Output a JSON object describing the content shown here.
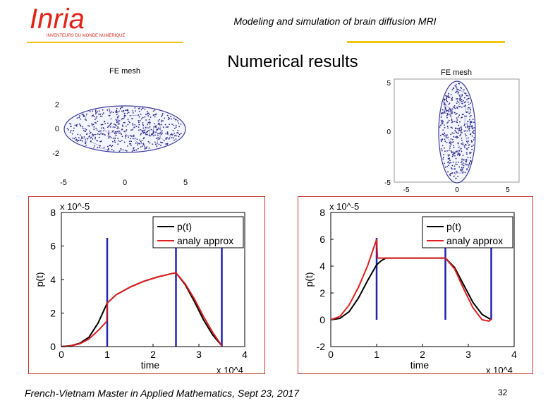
{
  "header": {
    "title": "Modeling and simulation of brain diffusion MRI",
    "logo_text": "Inria",
    "logo_tagline": "INVENTEURS DU MONDE NUMERIQUE"
  },
  "slide": {
    "title": "Numerical results"
  },
  "footer": {
    "text": "French-Vietnam Master in Applied Mathematics, Sept 23, 2017",
    "page": "32"
  },
  "colors": {
    "accent_yellow": "#f0c419",
    "inria_red": "#e2231a",
    "frame_red": "#c0392b",
    "mesh_blue": "#3b3b9c",
    "curve_black": "#000000",
    "curve_red": "#e02020",
    "line_blue": "#2323b0"
  },
  "mesh_left": {
    "title": "FE mesh",
    "xticks": [
      "-5",
      "0",
      "5"
    ],
    "yticks": [
      "2",
      "0",
      "-2"
    ]
  },
  "mesh_right": {
    "title": "FE mesh",
    "xticks": [
      "-5",
      "0",
      "5"
    ],
    "yticks": [
      "5",
      "0",
      "-5"
    ]
  },
  "chart_data": [
    {
      "type": "line",
      "xlabel": "time",
      "ylabel": "p(t)",
      "x_multiplier": "x 10^4",
      "y_multiplier": "x 10^-5",
      "xlim": [
        0,
        4
      ],
      "ylim": [
        0,
        8
      ],
      "xticks": [
        "0",
        "1",
        "2",
        "3",
        "4"
      ],
      "yticks": [
        "0",
        "2",
        "4",
        "6",
        "8"
      ],
      "legend": [
        "p(t)",
        "analy approx"
      ],
      "vertical_lines": [
        1.0,
        2.5,
        3.5
      ],
      "series": [
        {
          "name": "p(t)",
          "color": "#000000",
          "x": [
            0,
            0.2,
            0.4,
            0.6,
            0.8,
            1.0,
            1.2,
            1.5,
            1.8,
            2.1,
            2.4,
            2.5,
            2.7,
            2.9,
            3.1,
            3.3,
            3.5
          ],
          "y": [
            0,
            0.05,
            0.2,
            0.55,
            1.4,
            2.6,
            3.1,
            3.55,
            3.9,
            4.15,
            4.35,
            4.4,
            3.7,
            2.7,
            1.6,
            0.7,
            0.05
          ]
        },
        {
          "name": "analy approx",
          "color": "#e02020",
          "x": [
            0,
            0.2,
            0.4,
            0.6,
            0.8,
            0.99,
            1.0,
            1.2,
            1.5,
            1.8,
            2.1,
            2.4,
            2.5,
            2.7,
            2.9,
            3.1,
            3.3,
            3.5
          ],
          "y": [
            0,
            0.04,
            0.17,
            0.45,
            0.95,
            1.5,
            2.6,
            3.1,
            3.55,
            3.9,
            4.15,
            4.35,
            4.4,
            3.75,
            2.85,
            1.8,
            0.85,
            0.05
          ]
        }
      ]
    },
    {
      "type": "line",
      "xlabel": "time",
      "ylabel": "p(t)",
      "x_multiplier": "x 10^4",
      "y_multiplier": "x 10^-5",
      "xlim": [
        0,
        4
      ],
      "ylim": [
        -2,
        8
      ],
      "xticks": [
        "0",
        "1",
        "2",
        "3",
        "4"
      ],
      "yticks": [
        "-2",
        "0",
        "2",
        "4",
        "6",
        "8"
      ],
      "legend": [
        "p(t)",
        "analy approx"
      ],
      "vertical_lines": [
        1.0,
        2.5,
        3.5
      ],
      "series": [
        {
          "name": "p(t)",
          "color": "#000000",
          "x": [
            0,
            0.2,
            0.4,
            0.6,
            0.8,
            1.0,
            1.1,
            1.2,
            1.5,
            2.0,
            2.5,
            2.7,
            2.9,
            3.1,
            3.3,
            3.5
          ],
          "y": [
            0,
            0.1,
            0.6,
            1.6,
            2.9,
            4.1,
            4.4,
            4.6,
            4.6,
            4.6,
            4.6,
            3.9,
            2.6,
            1.3,
            0.4,
            0.0
          ]
        },
        {
          "name": "analy approx",
          "color": "#e02020",
          "x": [
            0,
            0.2,
            0.4,
            0.6,
            0.8,
            1.0,
            1.02,
            1.2,
            1.5,
            2.0,
            2.5,
            2.7,
            2.9,
            3.1,
            3.3,
            3.45,
            3.5
          ],
          "y": [
            0,
            0.25,
            1.1,
            2.4,
            4.0,
            6.0,
            4.6,
            4.6,
            4.6,
            4.6,
            4.6,
            3.8,
            2.3,
            0.9,
            0.0,
            -0.1,
            0.05
          ]
        }
      ]
    }
  ]
}
